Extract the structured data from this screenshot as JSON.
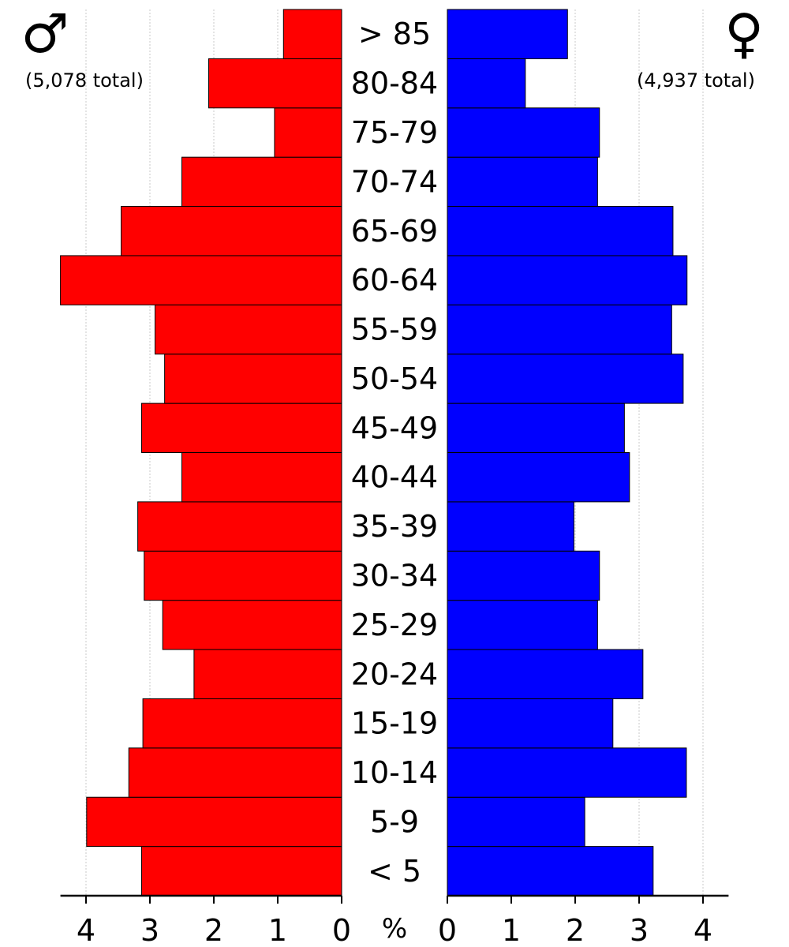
{
  "chart_data": {
    "type": "bar",
    "subtype": "population-pyramid",
    "categories": [
      "< 5",
      "5-9",
      "10-14",
      "15-19",
      "20-24",
      "25-29",
      "30-34",
      "35-39",
      "40-44",
      "45-49",
      "50-54",
      "55-59",
      "60-64",
      "65-69",
      "70-74",
      "75-79",
      "80-84",
      "> 85"
    ],
    "series": [
      {
        "name": "♂",
        "side": "left",
        "color": "#ff0000",
        "total_label": "(5,078 total)",
        "values": [
          3.13,
          3.99,
          3.33,
          3.11,
          2.31,
          2.8,
          3.09,
          3.19,
          2.5,
          3.13,
          2.77,
          2.92,
          4.4,
          3.45,
          2.5,
          1.05,
          2.08,
          0.91
        ]
      },
      {
        "name": "♀",
        "side": "right",
        "color": "#0000ff",
        "total_label": "(4,937 total)",
        "values": [
          3.22,
          2.15,
          3.74,
          2.59,
          3.06,
          2.35,
          2.38,
          1.98,
          2.85,
          2.77,
          3.69,
          3.51,
          3.75,
          3.53,
          2.35,
          2.38,
          1.22,
          1.88
        ]
      }
    ],
    "xlabel": "%",
    "xlim": [
      0,
      4.4
    ],
    "xticks": [
      "4",
      "3",
      "2",
      "1",
      "0",
      "0",
      "1",
      "2",
      "3",
      "4"
    ],
    "tick_values": [
      0,
      1,
      2,
      3,
      4
    ],
    "grid": true
  }
}
